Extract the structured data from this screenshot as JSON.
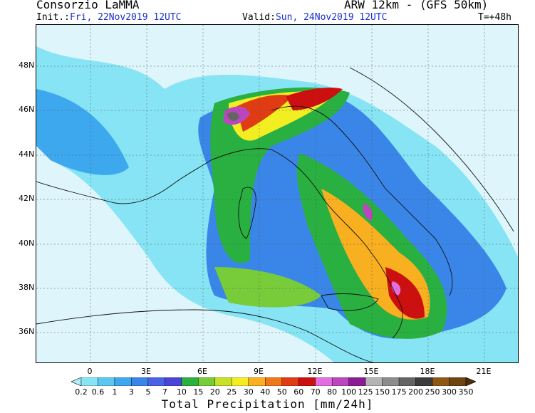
{
  "header": {
    "org": "Consorzio LaMMA",
    "model": "ARW 12km - (GFS 50km)",
    "init_label": "Init.:",
    "init_value": "Fri, 22Nov2019 12UTC",
    "valid_label": "Valid:",
    "valid_value": "Sun, 24Nov2019 12UTC",
    "lead": "T=+48h"
  },
  "lat_labels": [
    "48N",
    "46N",
    "44N",
    "42N",
    "40N",
    "38N",
    "36N"
  ],
  "lon_labels": [
    "0",
    "3E",
    "6E",
    "9E",
    "12E",
    "15E",
    "18E",
    "21E"
  ],
  "colorbar": {
    "title": "Total Precipitation [mm/24h]",
    "values": [
      "0.2",
      "0.6",
      "1",
      "3",
      "5",
      "7",
      "10",
      "15",
      "20",
      "25",
      "30",
      "40",
      "50",
      "60",
      "70",
      "80",
      "100",
      "125",
      "150",
      "175",
      "200",
      "250",
      "300",
      "350"
    ],
    "colors": [
      "#aef0f8",
      "#86e4f4",
      "#5cc8f0",
      "#3da8ee",
      "#3a86e8",
      "#4a62e6",
      "#4a44d8",
      "#2ab040",
      "#78cc3a",
      "#c8e028",
      "#f2ee22",
      "#f8b020",
      "#f07818",
      "#e03c14",
      "#cc1010",
      "#e26ee0",
      "#bc46c0",
      "#8c1c94",
      "#b4b4b4",
      "#8c8c8c",
      "#646464",
      "#3c3c3c",
      "#8c5a14",
      "#6e4410",
      "#4e2e0a"
    ]
  }
}
